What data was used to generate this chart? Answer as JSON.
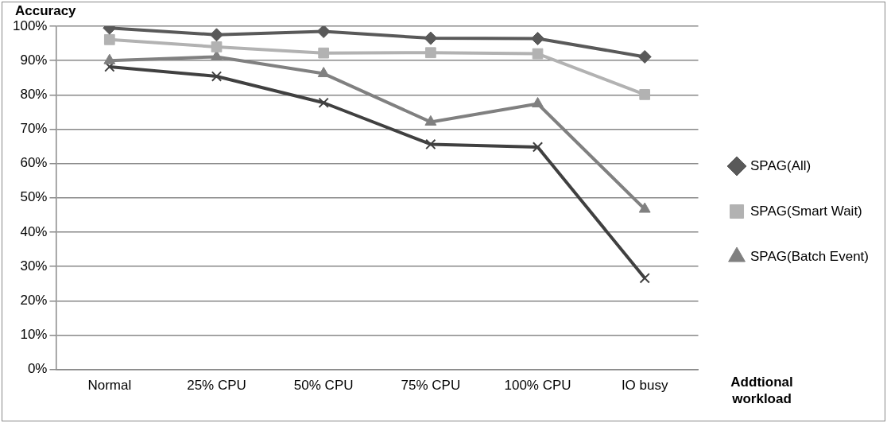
{
  "chart_data": {
    "type": "line",
    "ylabel": "Accuracy",
    "xlabel": "Addtional workload",
    "categories": [
      "Normal",
      "25% CPU",
      "50% CPU",
      "75% CPU",
      "100% CPU",
      "IO busy"
    ],
    "series": [
      {
        "name": "SPAG(All)",
        "color": "#595959",
        "marker": "diamond",
        "values": [
          99.5,
          97.5,
          98.5,
          96.5,
          96.4,
          91.1
        ]
      },
      {
        "name": "SPAG(Smart Wait)",
        "color": "#b2b2b2",
        "marker": "square",
        "values": [
          96.1,
          94,
          92.2,
          92.3,
          92,
          80.1
        ]
      },
      {
        "name": "SPAG(Batch Event)",
        "color": "#808080",
        "marker": "triangle",
        "values": [
          90,
          91.1,
          86.2,
          72.1,
          77.4,
          46.7
        ]
      },
      {
        "color": "#404040",
        "marker": "cross",
        "values": [
          88.2,
          85.4,
          77.7,
          65.6,
          64.8,
          26.6
        ]
      }
    ],
    "ylim": [
      0,
      100
    ],
    "yticks": [
      {
        "value": 0,
        "label": "0%"
      },
      {
        "value": 10,
        "label": "10%"
      },
      {
        "value": 20,
        "label": "20%"
      },
      {
        "value": 30,
        "label": "30%"
      },
      {
        "value": 40,
        "label": "40%"
      },
      {
        "value": 50,
        "label": "50%"
      },
      {
        "value": 60,
        "label": "60%"
      },
      {
        "value": 70,
        "label": "70%"
      },
      {
        "value": 80,
        "label": "80%"
      },
      {
        "value": 90,
        "label": "90%"
      },
      {
        "value": 100,
        "label": "100%"
      }
    ],
    "grid": "y",
    "legend": "right",
    "line_style": "solid"
  }
}
